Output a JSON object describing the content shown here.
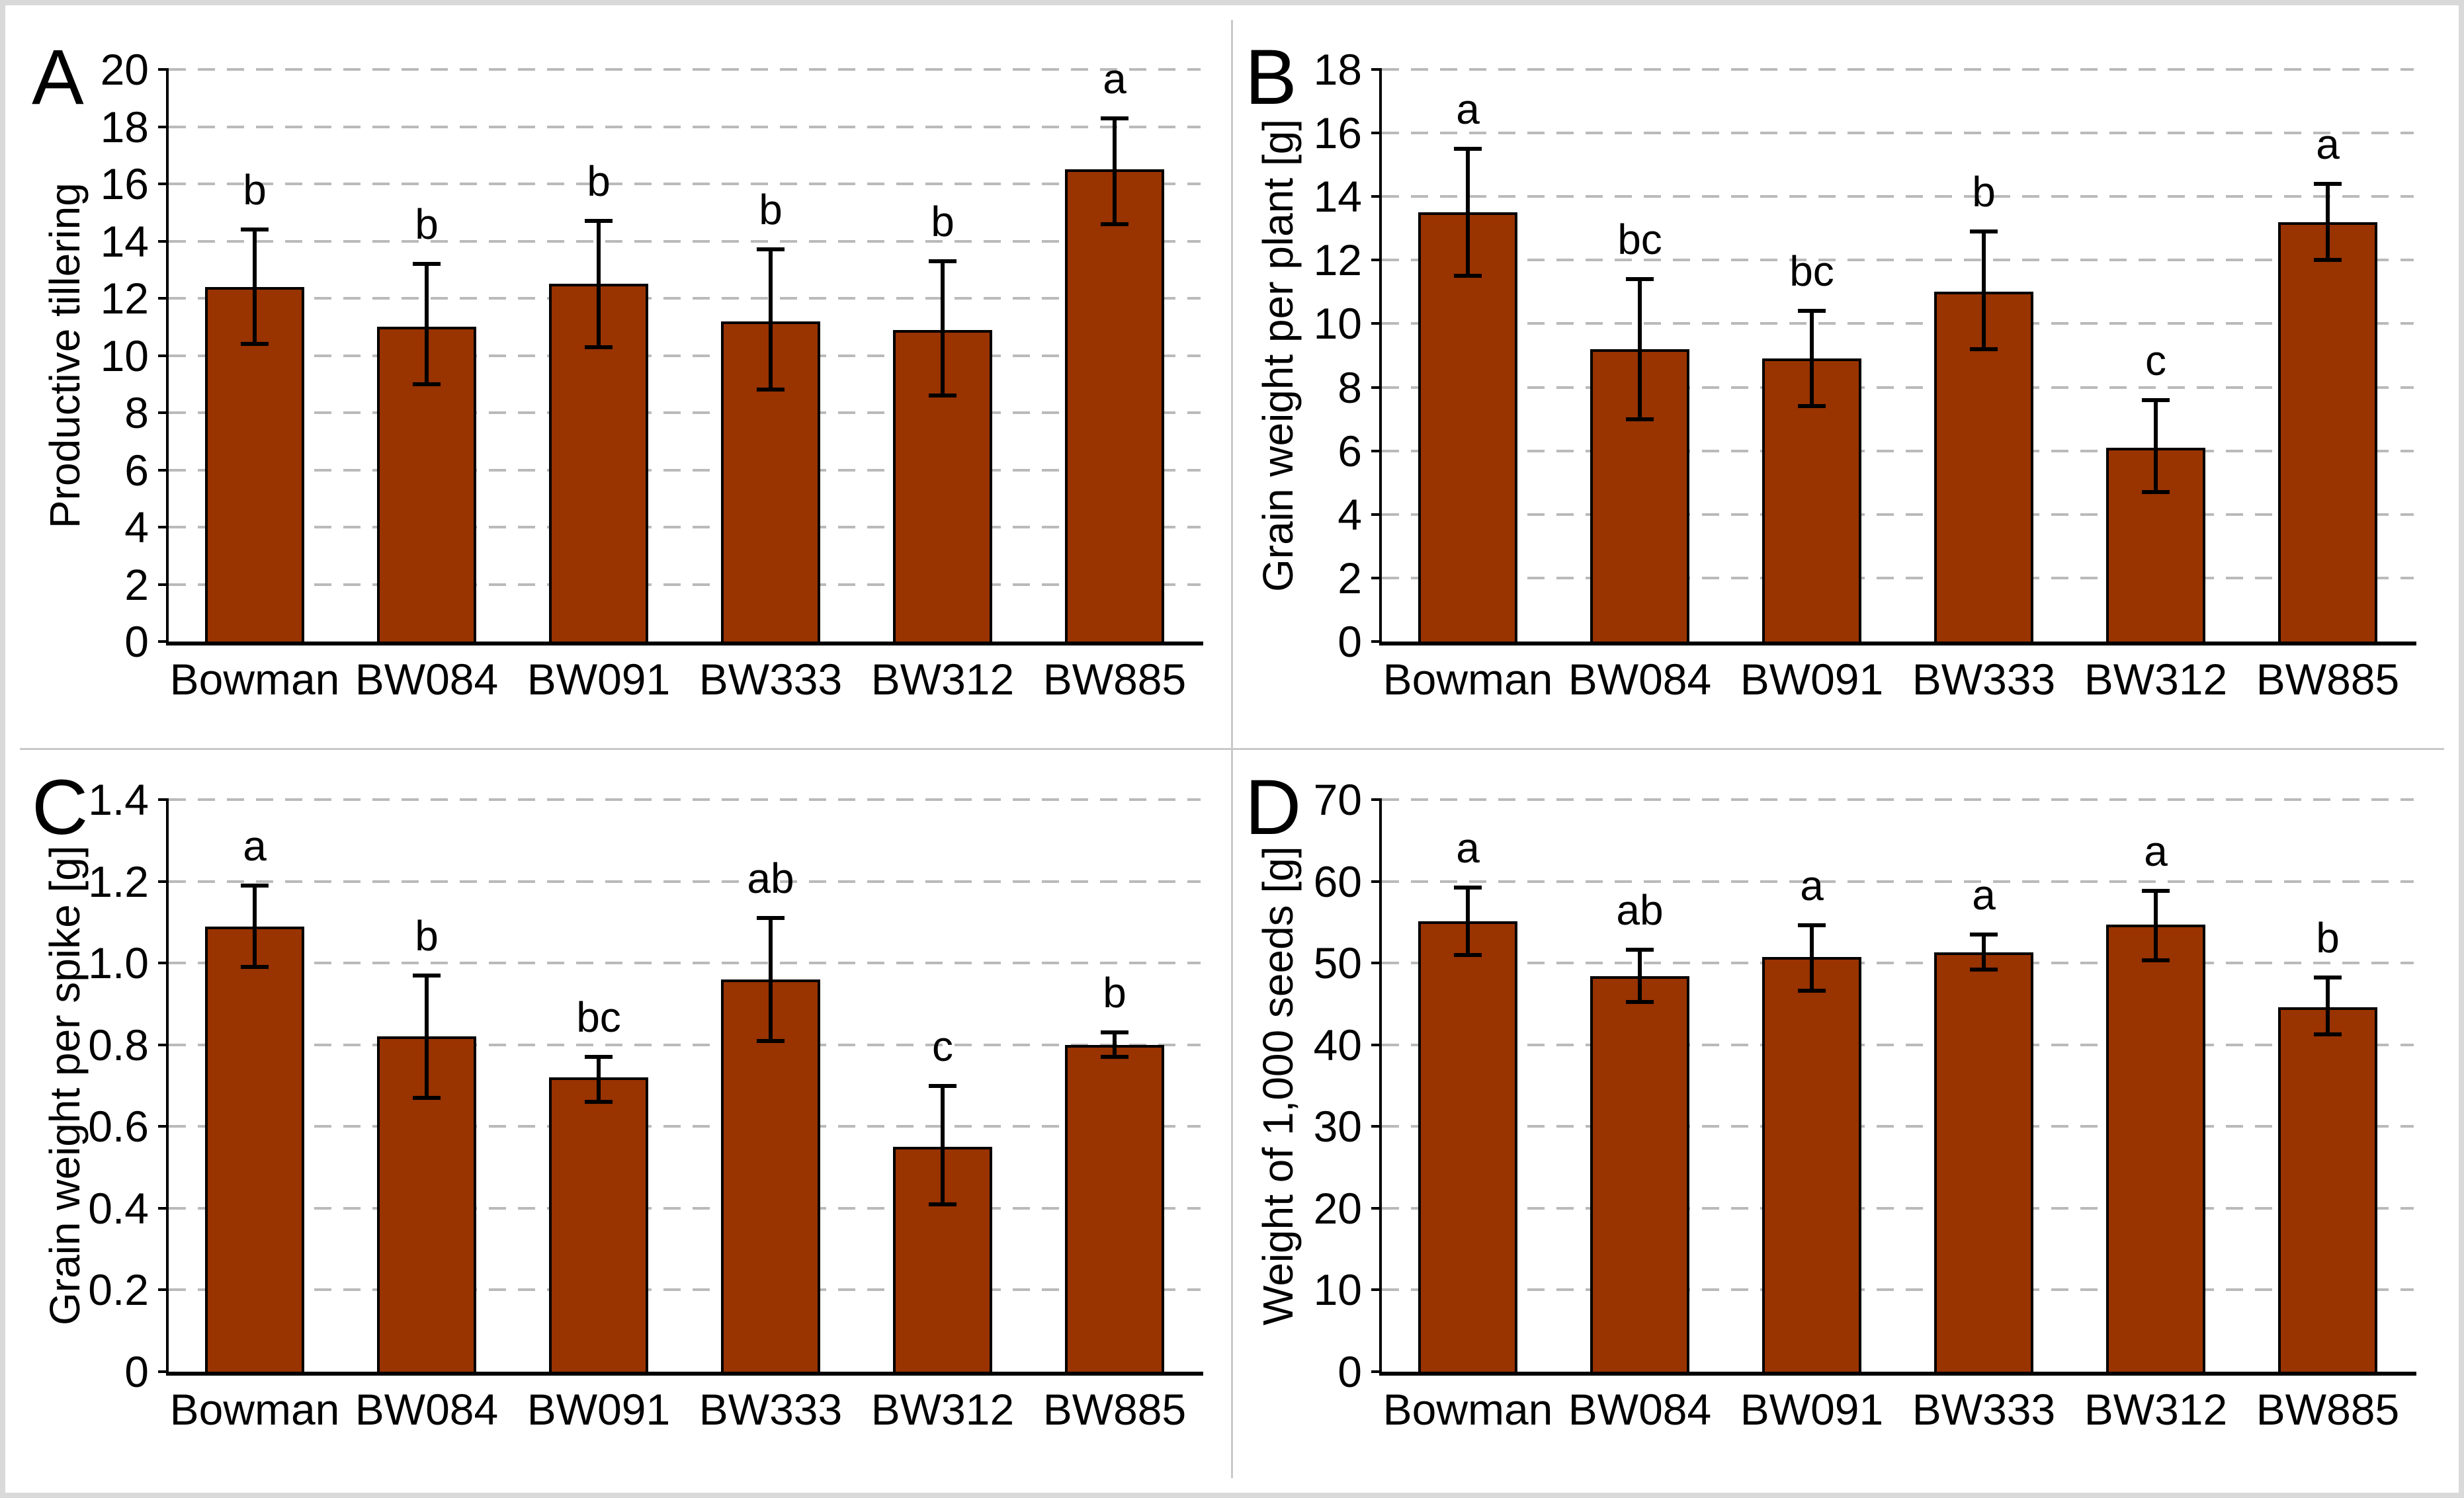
{
  "figure": {
    "background": "#FFFFFF",
    "outer_border_color": "#D9D9D9",
    "panel_divider_color": "#C9C9C9"
  },
  "style": {
    "bar_fill": "#993300",
    "bar_border": "#000000",
    "gridline_color": "#BABABA",
    "axis_color": "#000000",
    "error_bar_color": "#000000",
    "text_color": "#000000"
  },
  "chart_data": [
    {
      "panel_letter": "A",
      "type": "bar",
      "title": "",
      "ylabel": "Productive tillering",
      "xlabel": "",
      "ylim": [
        0,
        20
      ],
      "ystep": 2,
      "yticks": [
        "0",
        "2",
        "4",
        "6",
        "8",
        "10",
        "12",
        "14",
        "16",
        "18",
        "20"
      ],
      "grid": "horizontal-dashed",
      "legend": "none",
      "categories": [
        "Bowman",
        "BW084",
        "BW091",
        "BW333",
        "BW312",
        "BW885"
      ],
      "values": [
        12.4,
        11.0,
        12.5,
        11.2,
        10.9,
        16.5
      ],
      "error_low": [
        10.4,
        9.0,
        10.3,
        8.8,
        8.6,
        14.6
      ],
      "error_high": [
        14.4,
        13.2,
        14.7,
        13.7,
        13.3,
        18.3
      ],
      "sig_letters": [
        "b",
        "b",
        "b",
        "b",
        "b",
        "a"
      ]
    },
    {
      "panel_letter": "B",
      "type": "bar",
      "title": "",
      "ylabel": "Grain weight per plant [g]",
      "xlabel": "",
      "ylim": [
        0,
        18
      ],
      "ystep": 2,
      "yticks": [
        "0",
        "2",
        "4",
        "6",
        "8",
        "10",
        "12",
        "14",
        "16",
        "18"
      ],
      "grid": "horizontal-dashed",
      "legend": "none",
      "categories": [
        "Bowman",
        "BW084",
        "BW091",
        "BW333",
        "BW312",
        "BW885"
      ],
      "values": [
        13.5,
        9.2,
        8.9,
        11.0,
        6.1,
        13.2
      ],
      "error_low": [
        11.5,
        7.0,
        7.4,
        9.2,
        4.7,
        12.0
      ],
      "error_high": [
        15.5,
        11.4,
        10.4,
        12.9,
        7.6,
        14.4
      ],
      "sig_letters": [
        "a",
        "bc",
        "bc",
        "b",
        "c",
        "a"
      ]
    },
    {
      "panel_letter": "C",
      "type": "bar",
      "title": "",
      "ylabel": "Grain weight per spike [g]",
      "xlabel": "",
      "ylim": [
        0,
        1.4
      ],
      "ystep": 0.2,
      "yticks": [
        "0",
        "0.2",
        "0.4",
        "0.6",
        "0.8",
        "1.0",
        "1.2",
        "1.4"
      ],
      "grid": "horizontal-dashed",
      "legend": "none",
      "categories": [
        "Bowman",
        "BW084",
        "BW091",
        "BW333",
        "BW312",
        "BW885"
      ],
      "values": [
        1.09,
        0.82,
        0.72,
        0.96,
        0.55,
        0.8
      ],
      "error_low": [
        0.99,
        0.67,
        0.66,
        0.81,
        0.41,
        0.77
      ],
      "error_high": [
        1.19,
        0.97,
        0.77,
        1.11,
        0.7,
        0.83
      ],
      "sig_letters": [
        "a",
        "b",
        "bc",
        "ab",
        "c",
        "b"
      ]
    },
    {
      "panel_letter": "D",
      "type": "bar",
      "title": "",
      "ylabel": "Weight of 1,000 seeds [g]",
      "xlabel": "",
      "ylim": [
        0,
        70
      ],
      "ystep": 10,
      "yticks": [
        "0",
        "10",
        "20",
        "30",
        "40",
        "50",
        "60",
        "70"
      ],
      "grid": "horizontal-dashed",
      "legend": "none",
      "categories": [
        "Bowman",
        "BW084",
        "BW091",
        "BW333",
        "BW312",
        "BW885"
      ],
      "values": [
        55.1,
        48.4,
        50.7,
        51.3,
        54.7,
        44.6
      ],
      "error_low": [
        51.0,
        45.2,
        46.6,
        49.2,
        50.3,
        41.3
      ],
      "error_high": [
        59.2,
        51.6,
        54.6,
        53.5,
        58.8,
        48.2
      ],
      "sig_letters": [
        "a",
        "ab",
        "a",
        "a",
        "a",
        "b"
      ]
    }
  ]
}
